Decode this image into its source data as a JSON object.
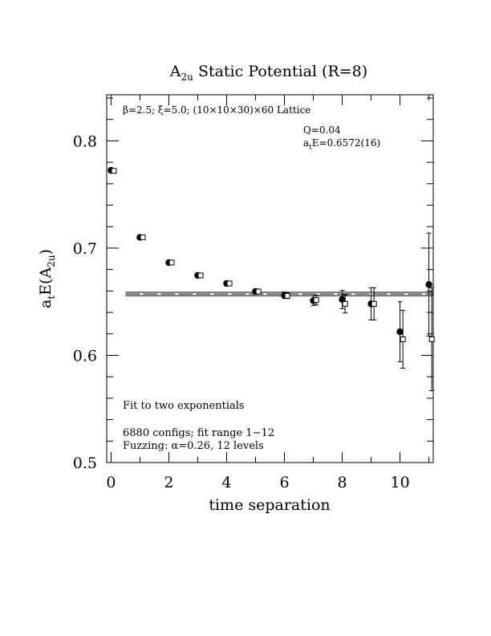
{
  "chart_data": {
    "type": "scatter",
    "title_main": "A",
    "title_sub": "2u",
    "title_rest": " Static Potential (R=8)",
    "xlabel": "time separation",
    "ylabel_main_a": "a",
    "ylabel_sub_a": "t",
    "ylabel_mid": "E(A",
    "ylabel_sub_b": "2u",
    "ylabel_end": ")",
    "xlim": [
      -0.15,
      11.15
    ],
    "ylim": [
      0.5,
      0.843
    ],
    "x_ticks": [
      "0",
      "2",
      "4",
      "6",
      "8",
      "10"
    ],
    "y_ticks": [
      "0.5",
      "0.6",
      "0.7",
      "0.8"
    ],
    "lattice_label": "β=2.5; ξ=5.0; (10×10×30)×60 Lattice",
    "q_label": "Q=0.04",
    "energy_label_a": "a",
    "energy_label_sub": "t",
    "energy_label_rest": "E=0.6572(16)",
    "fit_label": "Fit to two exponentials",
    "configs_label": "6880 configs; fit range 1−12",
    "fuzzing_label": "Fuzzing: α=0.26, 12 levels",
    "fit": {
      "value": 0.6572,
      "error": 0.0016,
      "x_start": 0.5,
      "x_end": 11.15
    },
    "effective_mass_points": [
      {
        "t": 0,
        "y": 0.7725,
        "err": 0.0012
      },
      {
        "t": 1,
        "y": 0.71,
        "err": 0.0015
      },
      {
        "t": 2,
        "y": 0.6865,
        "err": 0.0018
      },
      {
        "t": 3,
        "y": 0.6745,
        "err": 0.002
      },
      {
        "t": 4,
        "y": 0.667,
        "err": 0.0022
      },
      {
        "t": 5,
        "y": 0.6595,
        "err": 0.0025
      },
      {
        "t": 6,
        "y": 0.656,
        "err": 0.003
      },
      {
        "t": 7,
        "y": 0.651,
        "err": 0.0045
      },
      {
        "t": 8,
        "y": 0.652,
        "err": 0.0085
      },
      {
        "t": 9,
        "y": 0.648,
        "err": 0.015
      },
      {
        "t": 10,
        "y": 0.622,
        "err": 0.028
      },
      {
        "t": 11,
        "y": 0.666,
        "err": 0.048
      }
    ],
    "fit_curve_points": [
      {
        "t": 0.1,
        "y": 0.772,
        "err": 0.001
      },
      {
        "t": 1.1,
        "y": 0.71,
        "err": 0.001
      },
      {
        "t": 2.1,
        "y": 0.6865,
        "err": 0.0012
      },
      {
        "t": 3.1,
        "y": 0.6745,
        "err": 0.0015
      },
      {
        "t": 4.1,
        "y": 0.667,
        "err": 0.0017
      },
      {
        "t": 5.1,
        "y": 0.6595,
        "err": 0.002
      },
      {
        "t": 6.1,
        "y": 0.6555,
        "err": 0.0025
      },
      {
        "t": 7.1,
        "y": 0.6515,
        "err": 0.0045
      },
      {
        "t": 8.1,
        "y": 0.648,
        "err": 0.0085
      },
      {
        "t": 9.1,
        "y": 0.648,
        "err": 0.015
      },
      {
        "t": 10.1,
        "y": 0.615,
        "err": 0.027
      },
      {
        "t": 11.1,
        "y": 0.615,
        "err": 0.048
      }
    ],
    "grid": false,
    "legend": "none"
  }
}
